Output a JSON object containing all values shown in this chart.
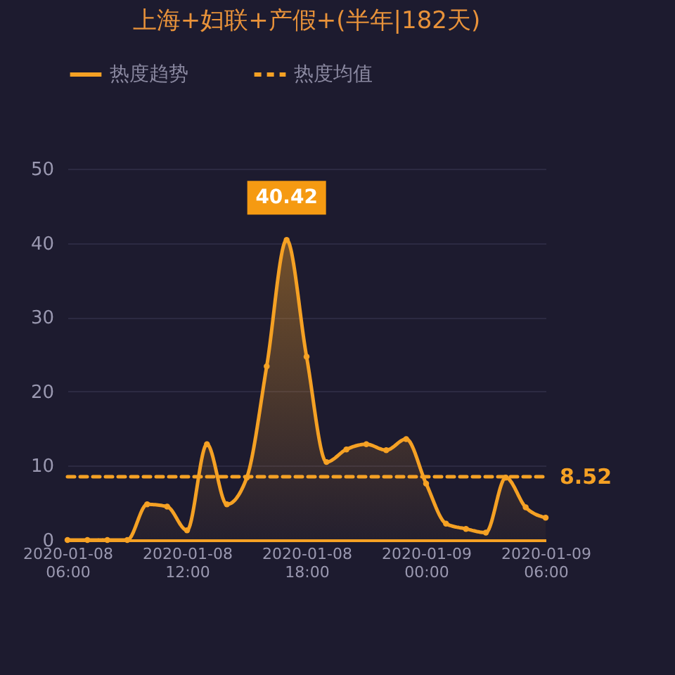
{
  "chart_data": {
    "type": "area",
    "title": "上海+妇联+产假+(半年|182天)",
    "x": [
      "2020-01-08T06:00",
      "2020-01-08T07:00",
      "2020-01-08T08:00",
      "2020-01-08T09:00",
      "2020-01-08T10:00",
      "2020-01-08T11:00",
      "2020-01-08T12:00",
      "2020-01-08T13:00",
      "2020-01-08T14:00",
      "2020-01-08T15:00",
      "2020-01-08T16:00",
      "2020-01-08T17:00",
      "2020-01-08T18:00",
      "2020-01-08T19:00",
      "2020-01-08T20:00",
      "2020-01-08T21:00",
      "2020-01-08T22:00",
      "2020-01-08T23:00",
      "2020-01-09T00:00",
      "2020-01-09T01:00",
      "2020-01-09T02:00",
      "2020-01-09T03:00",
      "2020-01-09T04:00",
      "2020-01-09T05:00",
      "2020-01-09T06:00"
    ],
    "series": [
      {
        "name": "热度趋势",
        "color": "#f5a124",
        "marker": "circle",
        "values": [
          0,
          0,
          0,
          0,
          4.8,
          4.5,
          1.3,
          12.9,
          4.8,
          8.4,
          23.4,
          40.42,
          24.7,
          10.5,
          12.2,
          12.9,
          12.1,
          13.6,
          7.6,
          2.2,
          1.5,
          1.0,
          8.4,
          4.4,
          3.0
        ]
      },
      {
        "name": "热度均值",
        "type": "line",
        "line_style": "dashed",
        "color": "#f5a124",
        "x": [
          "2020-01-08T06:00",
          "2020-01-09T06:00"
        ],
        "values": [
          8.52,
          8.52
        ],
        "value_labels": [
          null,
          "8.52"
        ]
      }
    ],
    "annotations": [
      {
        "text": "40.42",
        "x": "2020-01-08T17:00",
        "y": 40.42
      }
    ],
    "xlim": [
      "2020-01-08T06:00",
      "2020-01-09T06:00"
    ],
    "xticks": [
      {
        "value": "2020-01-08T06:00",
        "label": "2020-01-08\n06:00"
      },
      {
        "value": "2020-01-08T12:00",
        "label": "2020-01-08\n12:00"
      },
      {
        "value": "2020-01-08T18:00",
        "label": "2020-01-08\n18:00"
      },
      {
        "value": "2020-01-09T00:00",
        "label": "2020-01-09\n00:00"
      },
      {
        "value": "2020-01-09T06:00",
        "label": "2020-01-09\n06:00"
      }
    ],
    "ylim": [
      0,
      50
    ],
    "yticks": [
      0,
      10,
      20,
      30,
      40,
      50
    ],
    "grid": "y",
    "legend": "top"
  }
}
